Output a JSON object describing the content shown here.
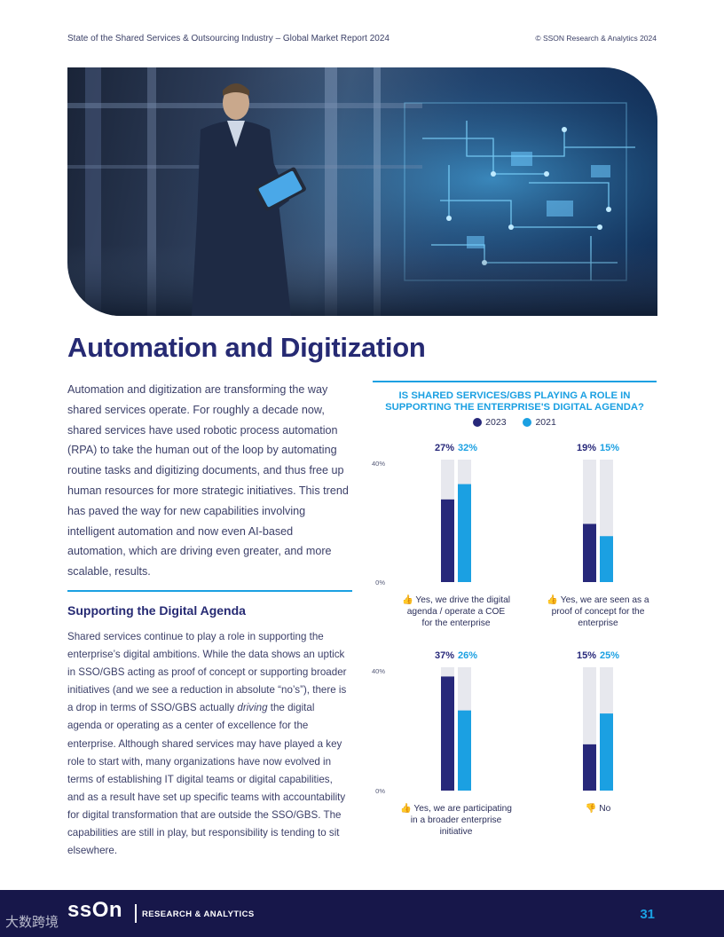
{
  "header": {
    "title": "State of the Shared Services & Outsourcing Industry – Global Market Report 2024",
    "copyright": "© SSON Research & Analytics 2024"
  },
  "page_title": "Automation and Digitization",
  "intro": "Automation and digitization are transforming the way shared services operate. For roughly a decade now, shared services have used robotic process automation (RPA) to take the human out of the loop by automating routine tasks and digitizing documents, and thus free up human resources for more strategic initiatives. This trend has paved the way for new capabilities involving intelligent automation and now even AI-based automation, which are driving even greater, and more scalable, results.",
  "section": {
    "heading": "Supporting the Digital Agenda",
    "body_before": "Shared services continue to play a role in supporting the enterprise’s digital ambitions. While the data shows an uptick in SSO/GBS acting as proof of concept or supporting broader initiatives (and we see a reduction in absolute “no’s”), there is a drop in terms of SSO/GBS actually ",
    "body_em": "driving",
    "body_after": " the digital agenda or operating as a center of excellence for the enterprise. Although shared services may have played a key role to start with, many organizations have now evolved in terms of establishing IT digital teams or digital capabilities, and as a result have set up specific teams with accountability for digital transformation that are outside the SSO/GBS. The capabilities are still in play, but responsibility is tending to sit elsewhere."
  },
  "chart_data": {
    "type": "bar",
    "title": "IS SHARED SERVICES/GBS PLAYING A ROLE IN SUPPORTING THE ENTERPRISE'S DIGITAL AGENDA?",
    "legend": [
      "2023",
      "2021"
    ],
    "colors": {
      "2023": "#27287a",
      "2021": "#1ba0e2",
      "track": "#e7e8ee",
      "label_2023": "#27287a",
      "label_2021": "#1ba0e2",
      "axis_text": "#555a78"
    },
    "ylim": [
      0,
      40
    ],
    "y_ticks": [
      "40%",
      "0%"
    ],
    "panels": [
      {
        "category": "Yes, we drive the digital agenda / operate a COE for the enterprise",
        "lines": [
          "Yes, we drive the digital",
          "agenda / operate a COE",
          "for the enterprise"
        ],
        "icon": "thumbs-up",
        "v2023": 27,
        "v2021": 32,
        "l2023": "27%",
        "l2021": "32%"
      },
      {
        "category": "Yes, we are seen as a proof of concept for the enterprise",
        "lines": [
          "Yes, we are seen as a",
          "proof of concept for the",
          "enterprise"
        ],
        "icon": "thumbs-up",
        "v2023": 19,
        "v2021": 15,
        "l2023": "19%",
        "l2021": "15%"
      },
      {
        "category": "Yes, we are participating in a broader enterprise initiative",
        "lines": [
          "Yes, we are participating",
          "in a broader enterprise",
          "initiative"
        ],
        "icon": "thumbs-up",
        "v2023": 37,
        "v2021": 26,
        "l2023": "37%",
        "l2021": "26%"
      },
      {
        "category": "No",
        "lines": [
          "No"
        ],
        "icon": "thumbs-down",
        "v2023": 15,
        "v2021": 25,
        "l2023": "15%",
        "l2021": "25%"
      }
    ]
  },
  "footer": {
    "logo": "ssOn",
    "label": "RESEARCH & ANALYTICS",
    "page_number": "31",
    "watermark": "大数跨境"
  }
}
